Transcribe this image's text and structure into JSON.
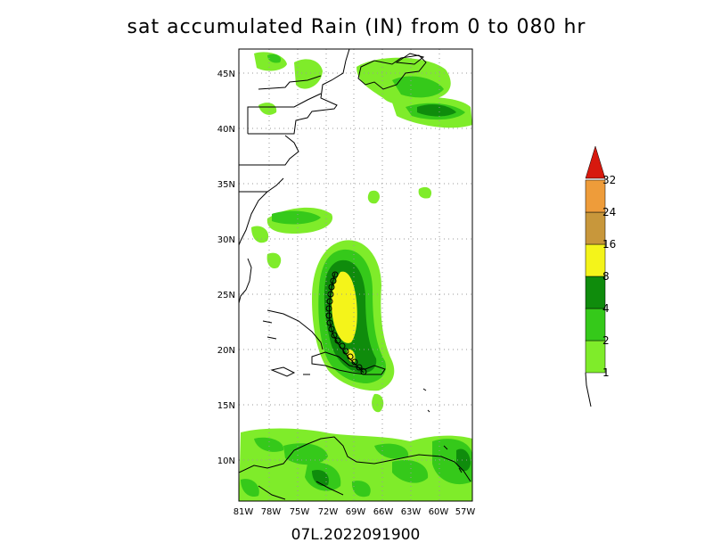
{
  "title": "sat accumulated Rain (IN) from 0 to 080 hr",
  "storm_id": "07L.2022091900",
  "map": {
    "lat_labels": [
      "45N",
      "40N",
      "35N",
      "30N",
      "25N",
      "20N",
      "15N",
      "10N"
    ],
    "lon_labels": [
      "81W",
      "78W",
      "75W",
      "72W",
      "69W",
      "66W",
      "63W",
      "60W",
      "57W"
    ]
  },
  "legend": {
    "levels": [
      "1",
      "2",
      "4",
      "8",
      "16",
      "24",
      "32"
    ],
    "colors": [
      "#7fec2a",
      "#35c91a",
      "#0f8c0c",
      "#f4f41a",
      "#c8973b",
      "#ee9c3a",
      "#d7190e"
    ]
  }
}
